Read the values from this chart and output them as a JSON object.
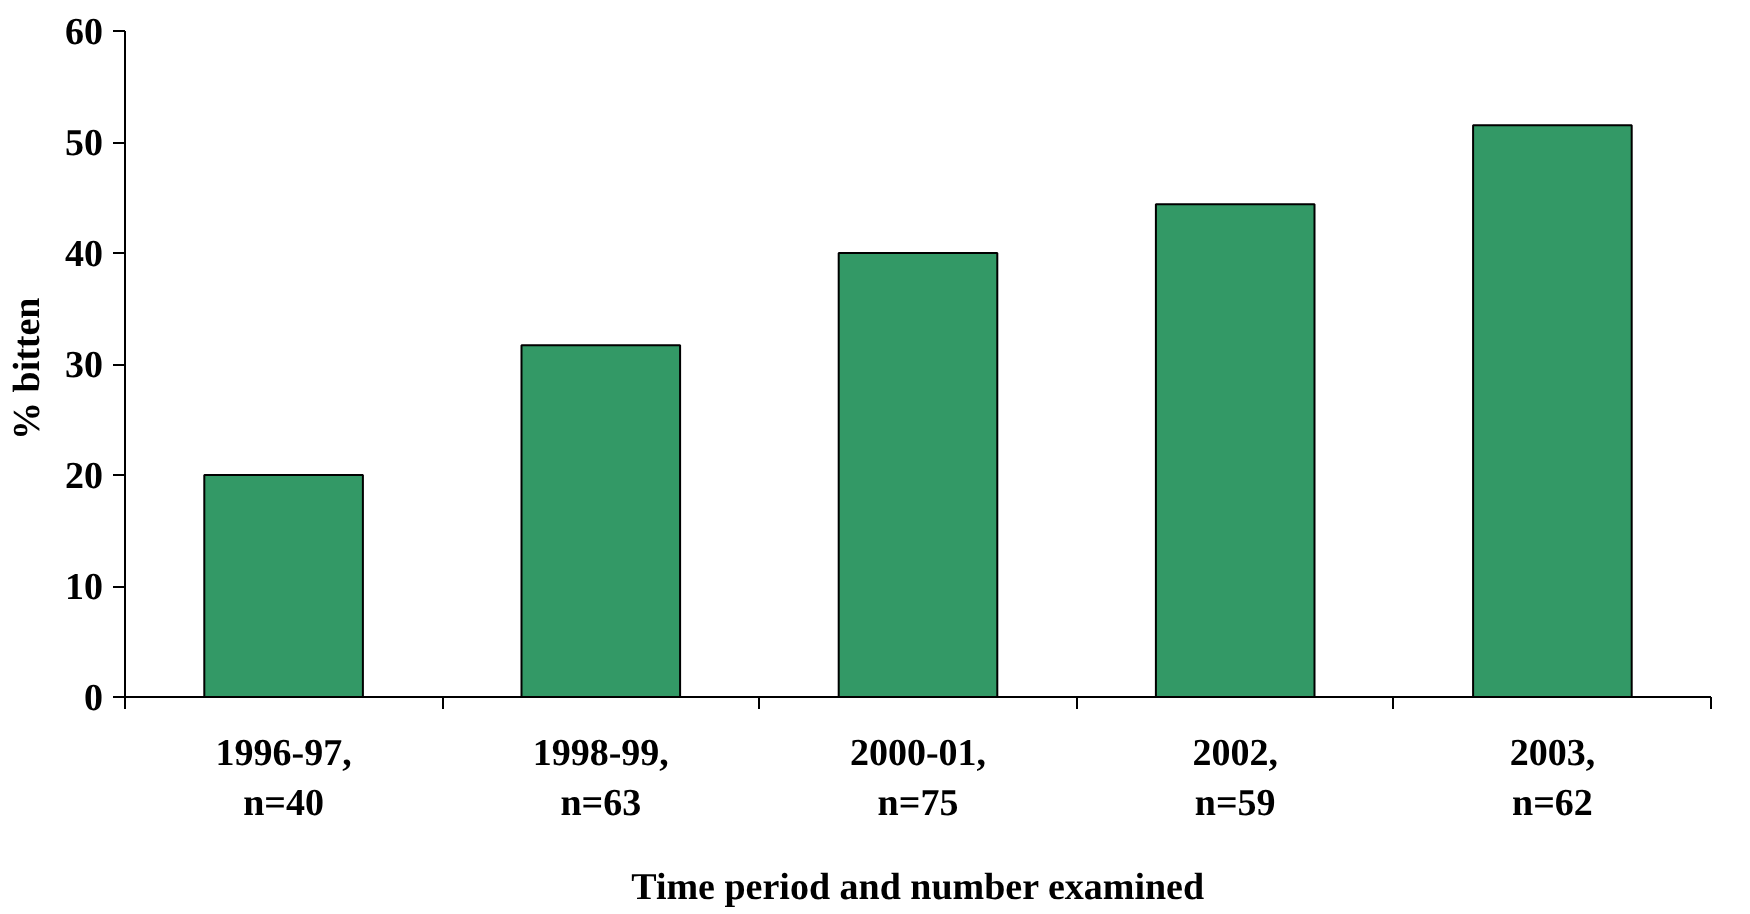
{
  "chart_data": {
    "type": "bar",
    "xlabel": "Time period and number examined",
    "ylabel": "%  bitten",
    "categories": [
      "1996-97,\nn=40",
      "1998-99,\nn=63",
      "2000-01,\nn=75",
      "2002,\nn=59",
      "2003,\nn=62"
    ],
    "values": [
      20,
      31.7,
      40,
      44.4,
      51.5
    ],
    "color": "#339966",
    "ylim": [
      0,
      60
    ],
    "yticks": [
      0,
      10,
      20,
      30,
      40,
      50,
      60
    ],
    "grid": false
  }
}
